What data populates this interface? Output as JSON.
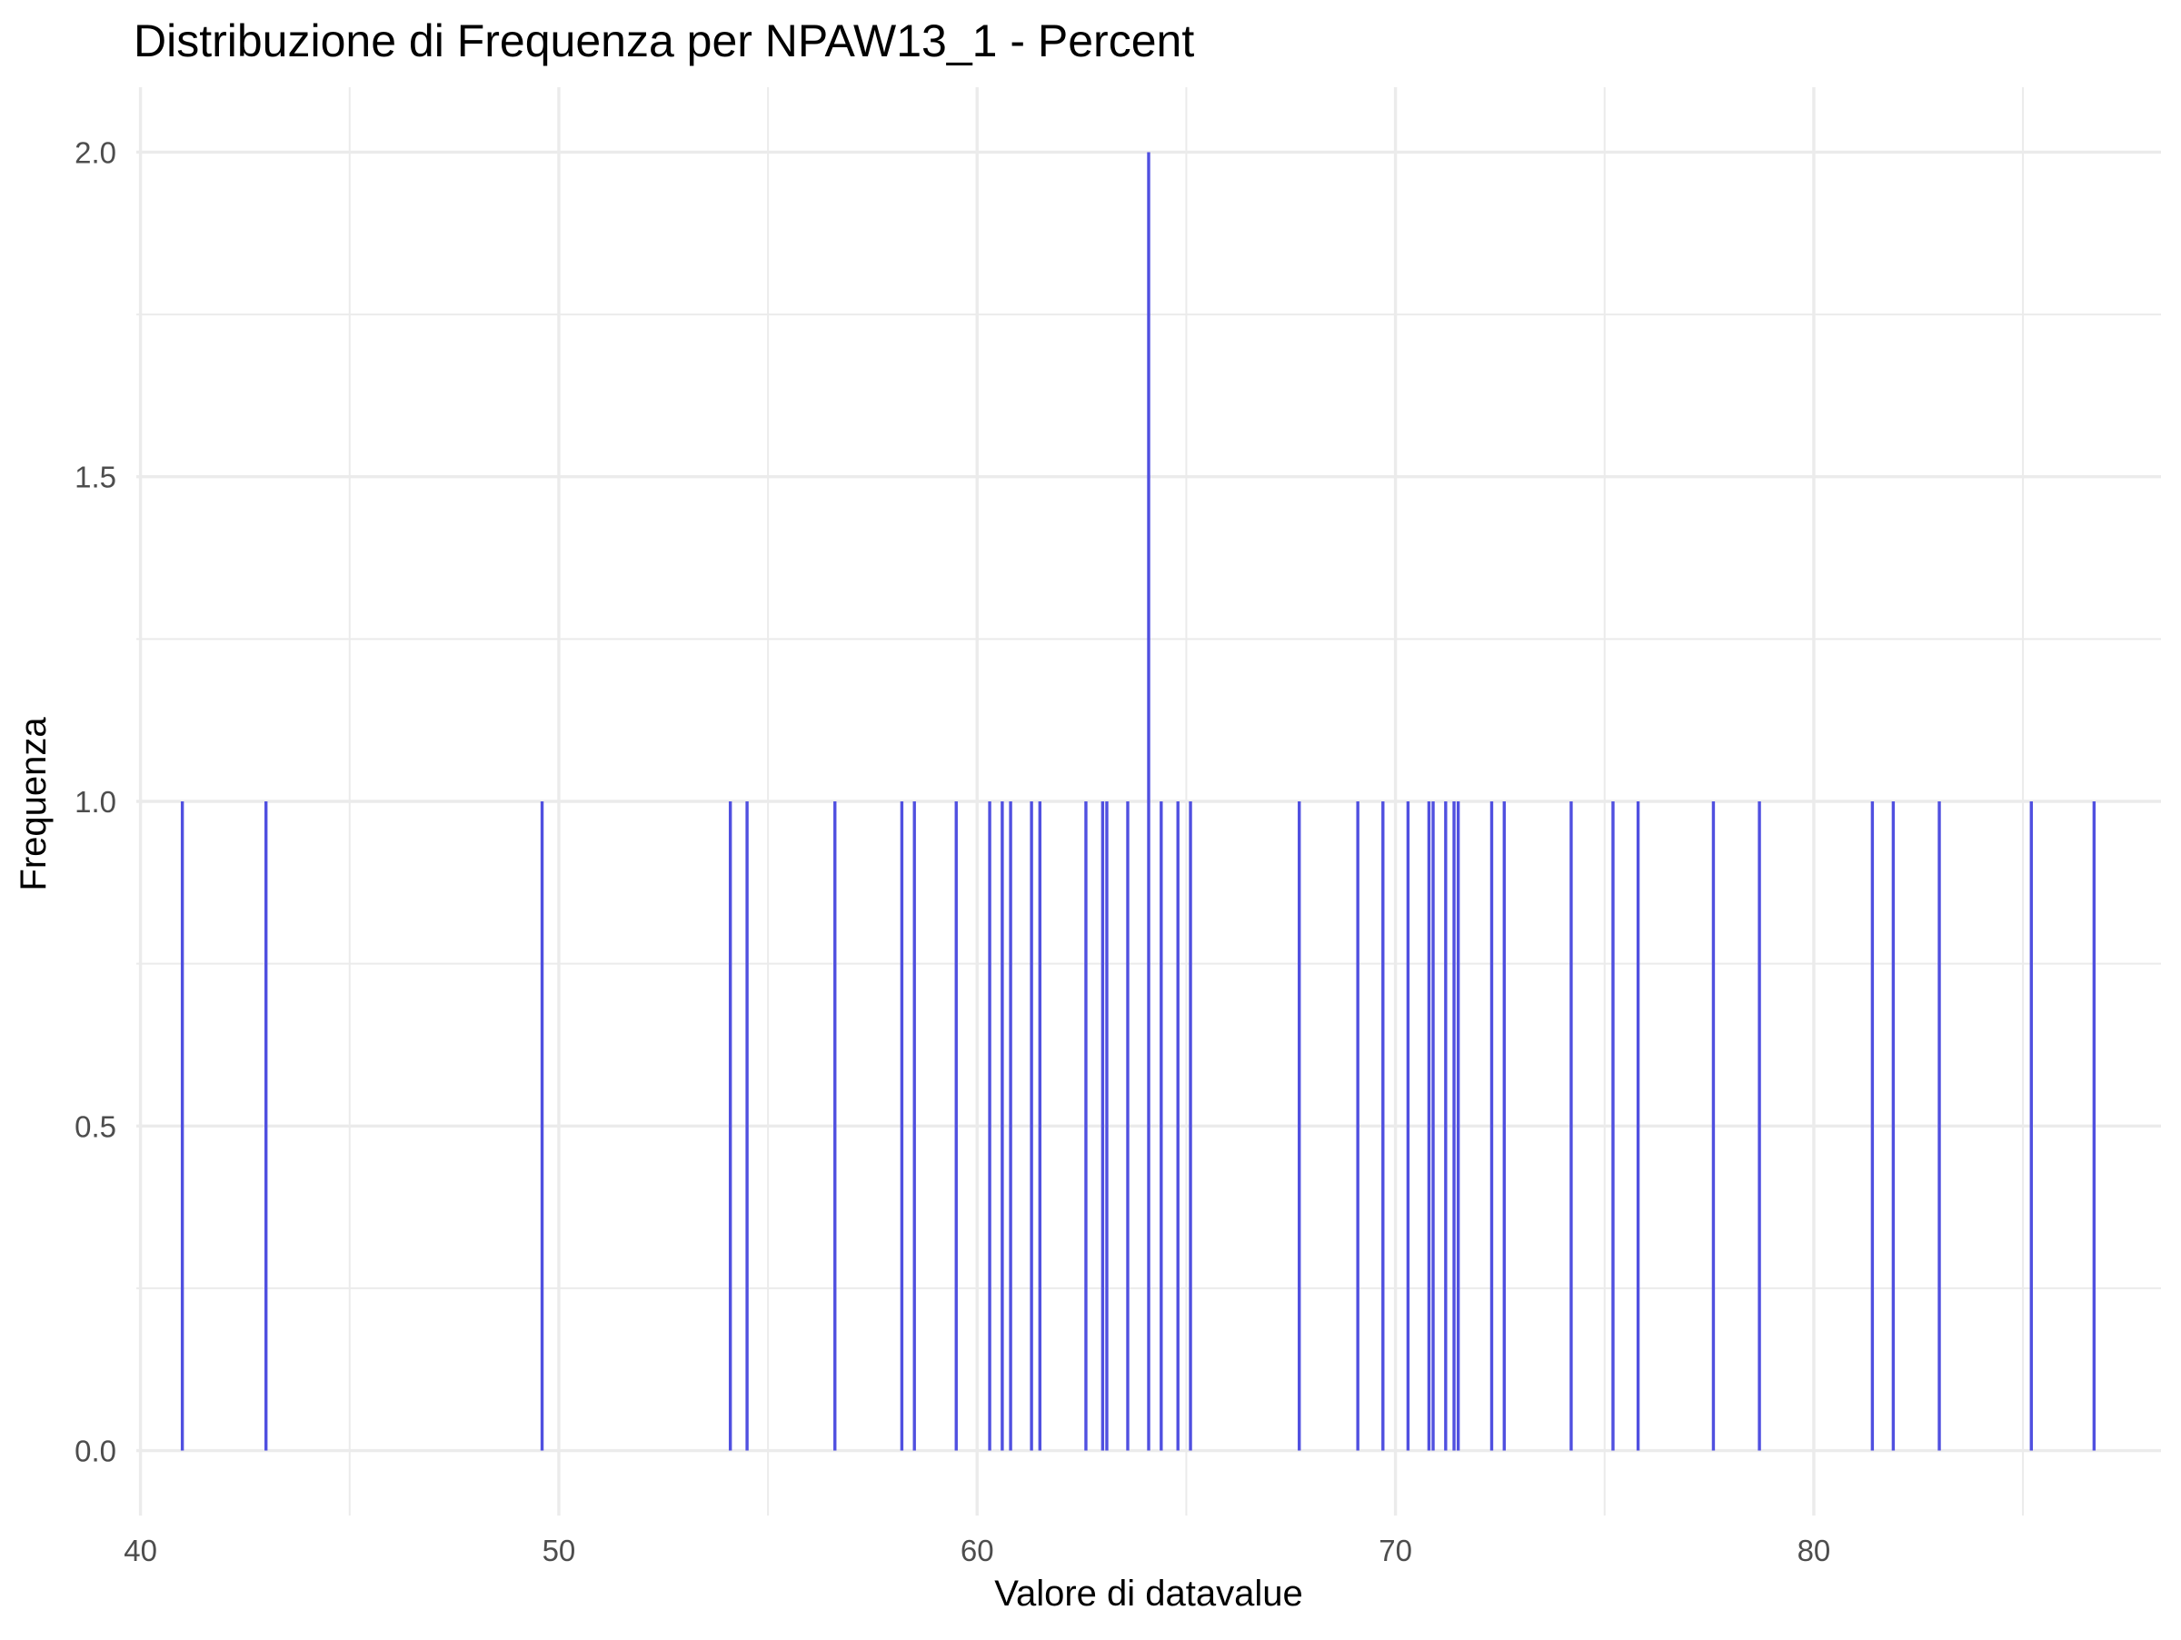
{
  "chart_data": {
    "type": "bar",
    "title": "Distribuzione di Frequenza per NPAW13_1 - Percent",
    "xlabel": "Valore di datavalue",
    "ylabel": "Frequenza",
    "xlim": [
      39.9,
      88.3
    ],
    "ylim": [
      -0.1,
      2.1
    ],
    "x_ticks": [
      40,
      50,
      60,
      70,
      80
    ],
    "y_ticks": [
      0.0,
      0.5,
      1.0,
      1.5,
      2.0
    ],
    "x_tick_labels": [
      "40",
      "50",
      "60",
      "70",
      "80"
    ],
    "y_tick_labels": [
      "0.0",
      "0.5",
      "1.0",
      "1.5",
      "2.0"
    ],
    "grid": true,
    "bar_color": "#5050e0",
    "x": [
      41.0,
      43.0,
      49.6,
      54.1,
      54.5,
      56.6,
      58.2,
      58.5,
      59.5,
      60.3,
      60.6,
      60.8,
      61.3,
      61.5,
      62.6,
      63.0,
      63.1,
      63.6,
      64.1,
      64.4,
      64.8,
      65.1,
      67.7,
      69.1,
      69.7,
      70.3,
      70.8,
      70.9,
      71.2,
      71.4,
      71.5,
      72.3,
      72.6,
      74.2,
      75.2,
      75.8,
      77.6,
      78.7,
      81.4,
      81.9,
      83.0,
      85.2,
      86.7
    ],
    "values": [
      1,
      1,
      1,
      1,
      1,
      1,
      1,
      1,
      1,
      1,
      1,
      1,
      1,
      1,
      1,
      1,
      1,
      1,
      2,
      1,
      1,
      1,
      1,
      1,
      1,
      1,
      1,
      1,
      1,
      1,
      1,
      1,
      1,
      1,
      1,
      1,
      1,
      1,
      1,
      1,
      1,
      1,
      1
    ]
  }
}
